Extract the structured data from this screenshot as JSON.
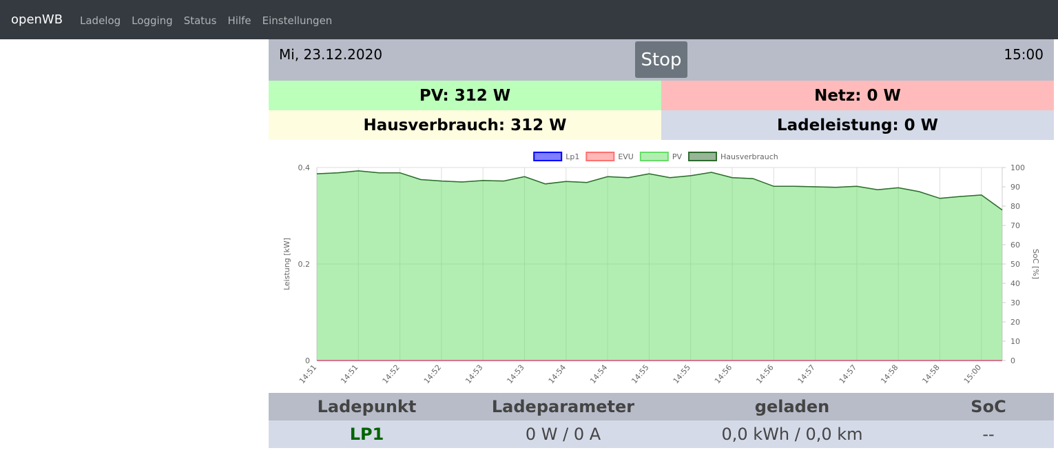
{
  "nav": {
    "brand": "openWB",
    "links": [
      "Ladelog",
      "Logging",
      "Status",
      "Hilfe",
      "Einstellungen"
    ]
  },
  "header": {
    "date": "Mi, 23.12.2020",
    "button": "Stop",
    "time": "15:00"
  },
  "summary": {
    "pv": "PV: 312 W",
    "netz": "Netz: 0 W",
    "hausverbrauch": "Hausverbrauch: 312 W",
    "ladeleistung": "Ladeleistung: 0 W"
  },
  "chart_data": {
    "type": "area",
    "y_label": "Leistung [kW]",
    "y2_label": "SoC [%]",
    "categories": [
      "14:51",
      null,
      "14:51",
      null,
      "14:52",
      null,
      "14:52",
      null,
      "14:53",
      null,
      "14:53",
      null,
      "14:54",
      null,
      "14:54",
      null,
      "14:55",
      null,
      "14:55",
      null,
      "14:56",
      null,
      "14:56",
      null,
      "14:57",
      null,
      "14:57",
      null,
      "14:58",
      null,
      "14:58",
      null,
      "15:00",
      null
    ],
    "ylim": [
      0,
      0.4
    ],
    "yticks": [
      0,
      0.2,
      0.4
    ],
    "y2lim": [
      0,
      100
    ],
    "y2ticks": [
      0,
      10,
      20,
      30,
      40,
      50,
      60,
      70,
      80,
      90,
      100
    ],
    "grid": true,
    "legend": "top",
    "series": [
      {
        "name": "Lp1",
        "color": "#0000ff",
        "fill": true,
        "values": [
          0,
          0,
          0,
          0,
          0,
          0,
          0,
          0,
          0,
          0,
          0,
          0,
          0,
          0,
          0,
          0,
          0,
          0,
          0,
          0,
          0,
          0,
          0,
          0,
          0,
          0,
          0,
          0,
          0,
          0,
          0,
          0,
          0,
          0
        ]
      },
      {
        "name": "EVU",
        "color": "#ff7070",
        "fill": true,
        "values": [
          0,
          0,
          0,
          0,
          0,
          0,
          0,
          0,
          0,
          0,
          0,
          0,
          0,
          0,
          0,
          0,
          0,
          0,
          0,
          0,
          0,
          0,
          0,
          0,
          0,
          0,
          0,
          0,
          0,
          0,
          0,
          0,
          0,
          0
        ]
      },
      {
        "name": "PV",
        "color": "#66dd66",
        "fill": true,
        "values": [
          0.387,
          0.389,
          0.393,
          0.389,
          0.389,
          0.375,
          0.372,
          0.37,
          0.373,
          0.372,
          0.381,
          0.366,
          0.371,
          0.369,
          0.381,
          0.379,
          0.387,
          0.379,
          0.383,
          0.39,
          0.379,
          0.377,
          0.361,
          0.361,
          0.36,
          0.359,
          0.361,
          0.354,
          0.358,
          0.35,
          0.336,
          0.34,
          0.343,
          0.312
        ]
      },
      {
        "name": "Hausverbrauch",
        "color": "#2f6b2f",
        "fill": false,
        "values": [
          0.387,
          0.389,
          0.393,
          0.389,
          0.389,
          0.375,
          0.372,
          0.37,
          0.373,
          0.372,
          0.381,
          0.366,
          0.371,
          0.369,
          0.381,
          0.379,
          0.387,
          0.379,
          0.383,
          0.39,
          0.379,
          0.377,
          0.361,
          0.361,
          0.36,
          0.359,
          0.361,
          0.354,
          0.358,
          0.35,
          0.336,
          0.34,
          0.343,
          0.312
        ]
      }
    ]
  },
  "table": {
    "header": [
      "Ladepunkt",
      "Ladeparameter",
      "geladen",
      "SoC"
    ],
    "rows": [
      [
        "LP1",
        "0 W / 0 A",
        "0,0 kWh / 0,0 km",
        "--"
      ]
    ]
  }
}
